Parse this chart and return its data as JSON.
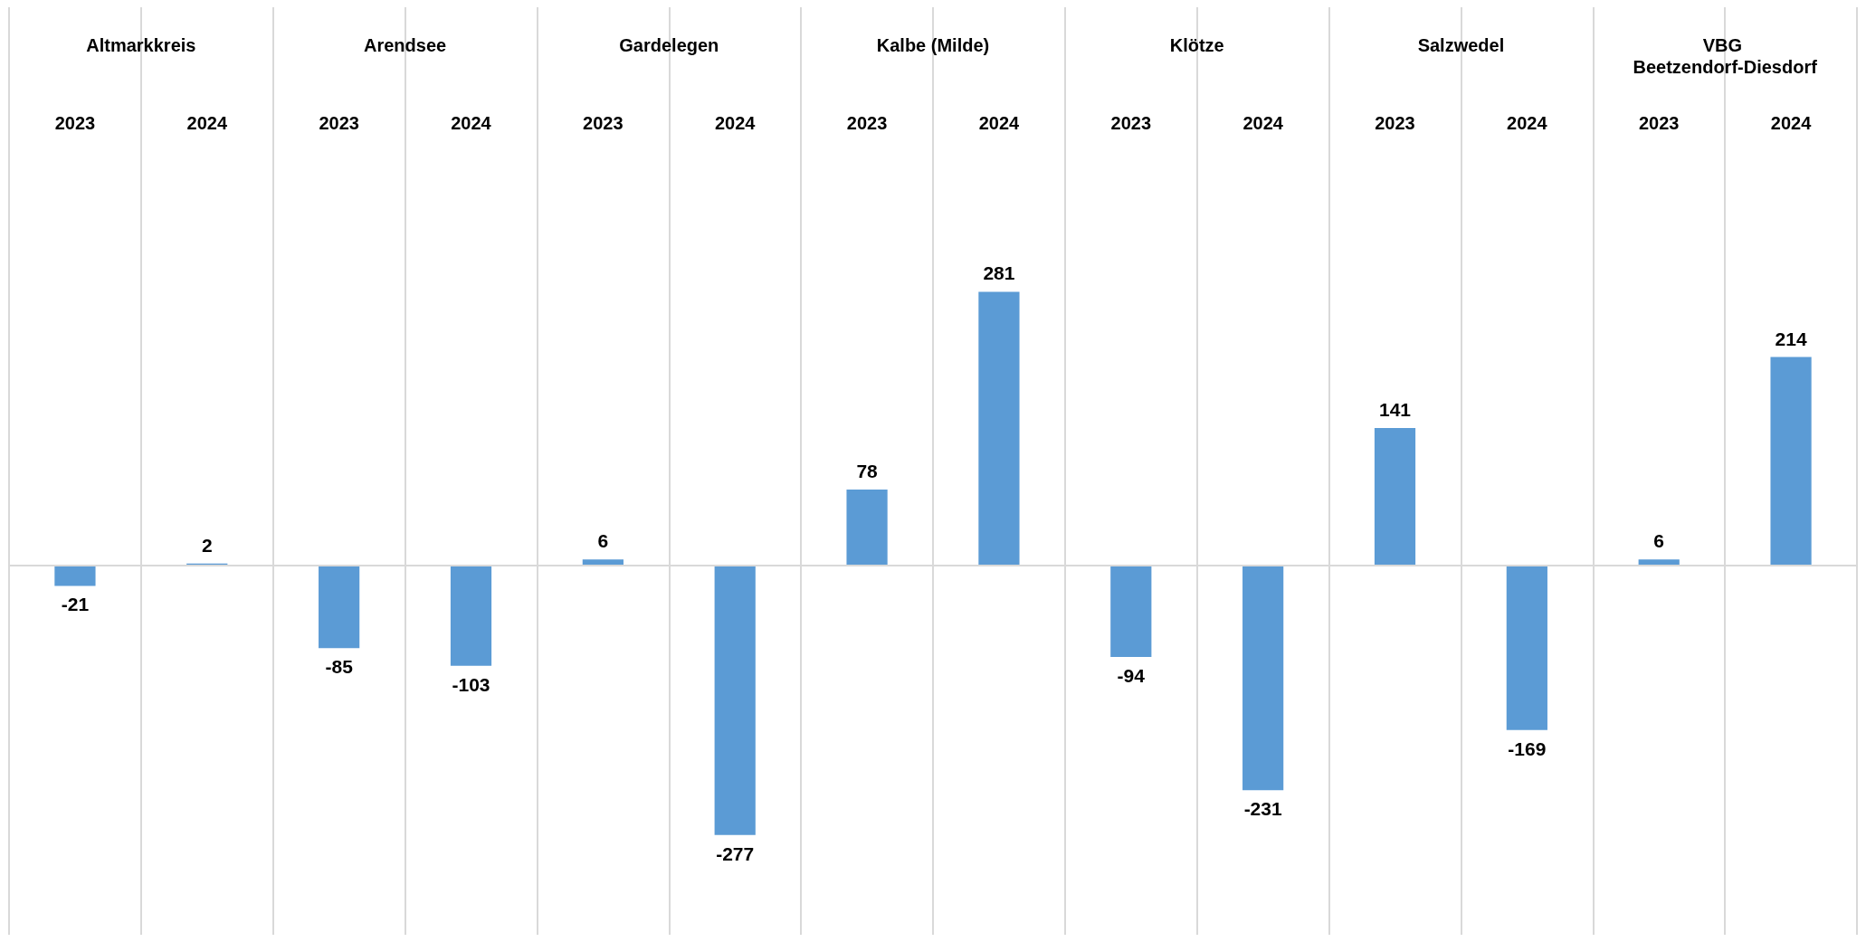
{
  "chart_data": {
    "type": "bar",
    "categories": [
      "2023",
      "2024",
      "2023",
      "2024",
      "2023",
      "2024",
      "2023",
      "2024",
      "2023",
      "2024",
      "2023",
      "2024",
      "2023",
      "2024"
    ],
    "values": [
      -21,
      2,
      -85,
      -103,
      6,
      -277,
      78,
      281,
      -94,
      -231,
      141,
      -169,
      6,
      214
    ],
    "color": "#5b9bd5",
    "data_labels": true,
    "grid": "x",
    "annotations": [
      "Altmarkkreis",
      "Arendsee",
      "Gardelegen",
      "Kalbe (Milde)",
      "Klötze",
      "Salzwedel",
      "VBG Beetzendorf-Diesdorf"
    ]
  }
}
